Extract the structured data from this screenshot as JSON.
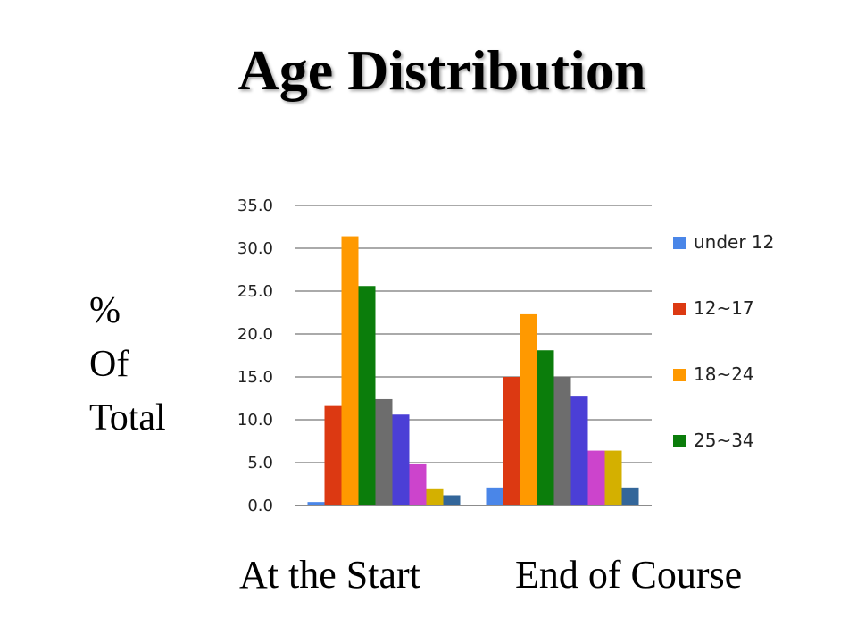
{
  "colors": {
    "under 12": "#4a86e8",
    "12~17": "#dc3912",
    "18~24": "#ff9900",
    "25~34": "#0b7d0b",
    "35~44": "#6d6d6d",
    "45~54": "#4b3fd6",
    "55~64": "#cc44cc",
    "65~74": "#d4b000",
    "75+": "#33669a"
  },
  "chart_data": {
    "type": "bar",
    "title": "Age Distribution",
    "ylabel_lines": [
      "%",
      "Of",
      "Total"
    ],
    "categories": [
      "At the Start",
      "End of Course"
    ],
    "yticks": [
      "0.0",
      "5.0",
      "10.0",
      "15.0",
      "20.0",
      "25.0",
      "30.0",
      "35.0"
    ],
    "ylim": [
      0,
      35
    ],
    "grid": true,
    "legend_position": "right",
    "legend": [
      "under 12",
      "12~17",
      "18~24",
      "25~34"
    ],
    "series": [
      {
        "name": "under 12",
        "values": [
          0.4,
          2.1
        ]
      },
      {
        "name": "12~17",
        "values": [
          11.6,
          15.0
        ]
      },
      {
        "name": "18~24",
        "values": [
          31.4,
          22.3
        ]
      },
      {
        "name": "25~34",
        "values": [
          25.6,
          18.1
        ]
      },
      {
        "values": [
          12.4,
          15.0
        ]
      },
      {
        "values": [
          10.6,
          12.8
        ]
      },
      {
        "values": [
          4.8,
          6.4
        ]
      },
      {
        "values": [
          2.0,
          6.4
        ]
      },
      {
        "values": [
          1.2,
          2.1
        ]
      }
    ]
  }
}
